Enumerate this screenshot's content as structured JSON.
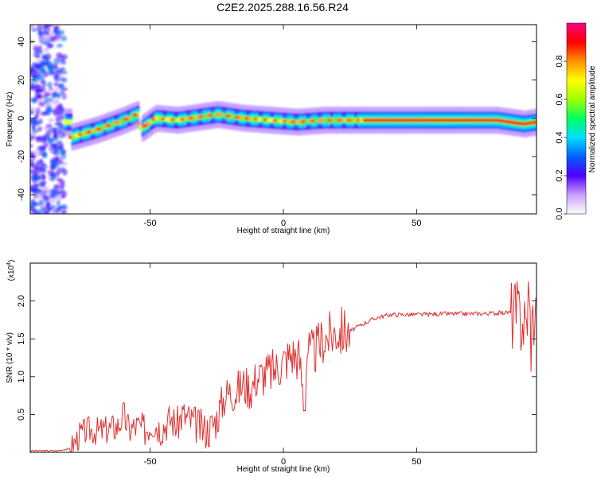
{
  "title": "C2E2.2025.288.16.56.R24",
  "chart_data": [
    {
      "type": "heatmap",
      "title": "C2E2.2025.288.16.56.R24",
      "xlabel": "Height of straight line (km)",
      "ylabel": "Frequency (Hz)",
      "xlim": [
        -95,
        95
      ],
      "ylim": [
        -50,
        49
      ],
      "xticks": [
        -50,
        0,
        50
      ],
      "yticks": [
        -40,
        -20,
        0,
        20,
        40
      ],
      "ridge": {
        "description": "peak-frequency trace of high normalized amplitude",
        "x": [
          -80,
          -70,
          -60,
          -55,
          -54,
          -48,
          -40,
          -30,
          -25,
          -15,
          -5,
          5,
          15,
          30,
          40,
          60,
          80,
          90,
          95
        ],
        "y": [
          -10,
          -6,
          -1,
          2,
          -6,
          0,
          -1,
          1,
          2,
          0,
          -1,
          -2,
          -1,
          -1,
          -1,
          -1,
          -1,
          -3,
          -2
        ]
      },
      "noise_region_x": [
        -95,
        -82
      ],
      "colorbar": {
        "label": "Normalized spectral amplitude",
        "range": [
          0.0,
          1.0
        ],
        "ticks": [
          "0.0",
          "0.2",
          "0.4",
          "0.6",
          "0.8"
        ],
        "ticks_values": [
          0.0,
          0.2,
          0.4,
          0.6,
          0.8
        ],
        "colors": [
          "#ffffff",
          "#c8a0ff",
          "#5000ff",
          "#0060ff",
          "#00e0ff",
          "#00ff60",
          "#a0ff00",
          "#ffff00",
          "#ff9000",
          "#ff0000",
          "#ff0080"
        ]
      }
    },
    {
      "type": "line",
      "xlabel": "Height of straight line (km)",
      "ylabel": "SNR (10 * v/v)",
      "scale_label": "(x10",
      "scale_exp": "4",
      "scale_close": ")",
      "xlim": [
        -95,
        95
      ],
      "ylim": [
        0,
        2.5
      ],
      "xticks": [
        -50,
        0,
        50
      ],
      "yticks": [
        0.5,
        1.0,
        1.5,
        2.0
      ],
      "ytick_labels": [
        "0.5",
        "1.0",
        "1.5",
        "2.0"
      ],
      "series": [
        {
          "name": "SNR",
          "color": "#e03030",
          "x": [
            -95,
            -85,
            -80,
            -76,
            -73,
            -70,
            -66,
            -62,
            -60,
            -58,
            -55,
            -52,
            -49,
            -46,
            -42,
            -40,
            -38,
            -36,
            -34,
            -32,
            -30,
            -28,
            -25,
            -22,
            -20,
            -18,
            -15,
            -12,
            -10,
            -6,
            -3,
            0,
            3,
            6,
            8,
            9,
            10,
            12,
            15,
            18,
            20,
            25,
            30,
            35,
            40,
            50,
            60,
            70,
            80,
            85,
            88,
            90,
            91,
            92,
            93,
            94,
            95
          ],
          "y": [
            0.02,
            0.02,
            0.05,
            0.25,
            0.3,
            0.28,
            0.3,
            0.35,
            0.5,
            0.3,
            0.35,
            0.3,
            0.4,
            0.32,
            0.45,
            0.35,
            0.5,
            0.45,
            0.4,
            0.35,
            0.3,
            0.3,
            0.45,
            0.75,
            0.8,
            0.8,
            0.9,
            0.85,
            1.0,
            1.05,
            1.1,
            1.2,
            1.3,
            1.25,
            0.6,
            1.4,
            1.3,
            1.35,
            1.5,
            1.55,
            1.6,
            1.6,
            1.7,
            1.78,
            1.82,
            1.82,
            1.83,
            1.83,
            1.84,
            1.85,
            1.8,
            1.75,
            1.6,
            2.1,
            1.5,
            1.85,
            1.8
          ]
        }
      ]
    }
  ]
}
